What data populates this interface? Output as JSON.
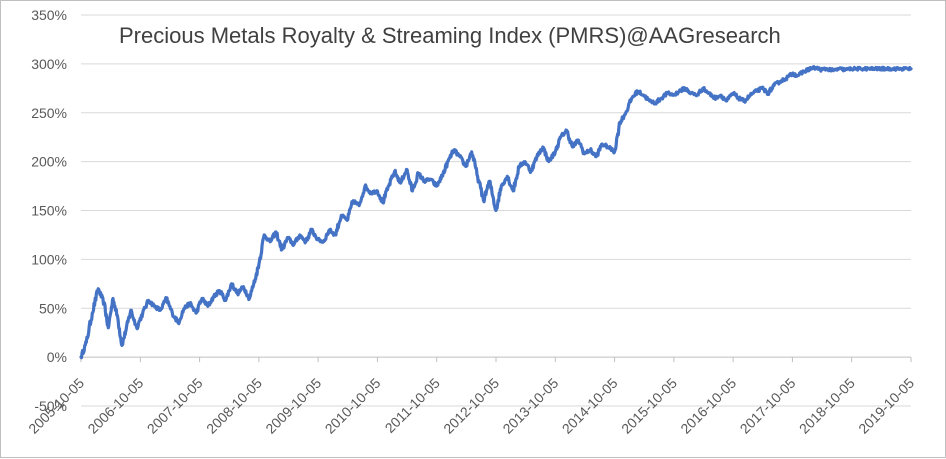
{
  "chart_data": {
    "type": "line",
    "title": "Precious Metals Royalty & Streaming Index (PMRS)@AAGresearch",
    "xlabel": "",
    "ylabel": "",
    "ylim": [
      -50,
      350
    ],
    "y_ticks": [
      -50,
      0,
      50,
      100,
      150,
      200,
      250,
      300,
      350
    ],
    "y_tick_labels": [
      "-50%",
      "0%",
      "50%",
      "100%",
      "150%",
      "200%",
      "250%",
      "300%",
      "350%"
    ],
    "x_tick_labels": [
      "2005-10-05",
      "2006-10-05",
      "2007-10-05",
      "2008-10-05",
      "2009-10-05",
      "2010-10-05",
      "2011-10-05",
      "2012-10-05",
      "2013-10-05",
      "2014-10-05",
      "2015-10-05",
      "2016-10-05",
      "2017-10-05",
      "2018-10-05",
      "2019-10-05"
    ],
    "x_range": [
      2005.76,
      2019.76
    ],
    "grid": true,
    "legend": "none",
    "series": [
      {
        "name": "PMRS",
        "color": "#4472c4",
        "x": [
          2005.76,
          2005.85,
          2005.95,
          2006.05,
          2006.15,
          2006.22,
          2006.3,
          2006.38,
          2006.45,
          2006.52,
          2006.6,
          2006.7,
          2006.8,
          2006.9,
          2007.0,
          2007.1,
          2007.2,
          2007.3,
          2007.4,
          2007.5,
          2007.6,
          2007.7,
          2007.8,
          2007.9,
          2008.0,
          2008.1,
          2008.2,
          2008.3,
          2008.4,
          2008.5,
          2008.6,
          2008.7,
          2008.76,
          2008.85,
          2008.95,
          2009.05,
          2009.15,
          2009.25,
          2009.35,
          2009.45,
          2009.55,
          2009.65,
          2009.76,
          2009.85,
          2009.95,
          2010.05,
          2010.15,
          2010.25,
          2010.35,
          2010.45,
          2010.55,
          2010.65,
          2010.76,
          2010.85,
          2010.95,
          2011.05,
          2011.15,
          2011.25,
          2011.35,
          2011.45,
          2011.55,
          2011.65,
          2011.76,
          2011.85,
          2011.95,
          2012.05,
          2012.15,
          2012.25,
          2012.35,
          2012.45,
          2012.55,
          2012.65,
          2012.76,
          2012.85,
          2012.95,
          2013.05,
          2013.15,
          2013.25,
          2013.35,
          2013.45,
          2013.55,
          2013.65,
          2013.76,
          2013.85,
          2013.95,
          2014.05,
          2014.15,
          2014.25,
          2014.35,
          2014.45,
          2014.55,
          2014.65,
          2014.76,
          2014.85,
          2014.95,
          2015.05,
          2015.15,
          2015.25,
          2015.35,
          2015.45,
          2015.55,
          2015.65,
          2015.76,
          2015.85,
          2015.95,
          2016.05,
          2016.15,
          2016.25,
          2016.35,
          2016.45,
          2016.55,
          2016.65,
          2016.76,
          2016.85,
          2016.95,
          2017.05,
          2017.15,
          2017.25,
          2017.35,
          2017.45,
          2017.55,
          2017.65,
          2017.76,
          2017.85,
          2017.95,
          2018.05,
          2018.15,
          2018.25,
          2018.35,
          2018.45,
          2018.55,
          2018.65,
          2018.76,
          2018.85,
          2018.95,
          2019.05,
          2019.15,
          2019.25,
          2019.35,
          2019.45,
          2019.55,
          2019.65,
          2019.76
        ],
        "values": [
          0,
          15,
          45,
          70,
          55,
          30,
          60,
          40,
          12,
          28,
          48,
          30,
          45,
          58,
          52,
          48,
          60,
          45,
          35,
          50,
          55,
          45,
          60,
          52,
          62,
          68,
          58,
          75,
          65,
          72,
          60,
          80,
          95,
          125,
          118,
          128,
          110,
          122,
          115,
          125,
          118,
          130,
          120,
          118,
          130,
          125,
          145,
          140,
          160,
          155,
          175,
          168,
          170,
          158,
          175,
          190,
          178,
          192,
          170,
          188,
          180,
          182,
          175,
          185,
          200,
          212,
          205,
          195,
          210,
          185,
          160,
          180,
          150,
          175,
          185,
          170,
          195,
          200,
          190,
          205,
          215,
          200,
          210,
          225,
          232,
          215,
          222,
          208,
          212,
          205,
          218,
          215,
          210,
          240,
          250,
          265,
          272,
          268,
          262,
          260,
          265,
          270,
          268,
          272,
          275,
          270,
          268,
          275,
          270,
          265,
          268,
          262,
          270,
          265,
          262,
          268,
          272,
          275,
          270,
          278,
          282,
          285,
          290,
          288,
          292,
          295,
          296,
          294,
          295,
          293,
          295,
          294,
          295,
          295,
          295,
          295,
          295,
          295,
          295,
          295,
          295,
          295,
          295
        ]
      }
    ]
  }
}
